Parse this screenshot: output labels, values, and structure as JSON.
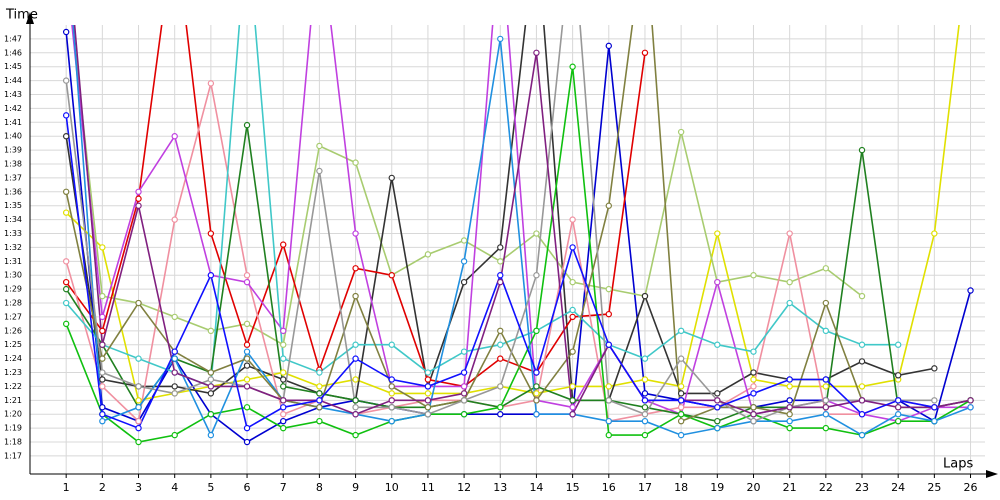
{
  "chart_data": {
    "type": "line",
    "y_label": "Time",
    "x_label": "Laps",
    "x": [
      1,
      2,
      3,
      4,
      5,
      6,
      7,
      8,
      9,
      10,
      11,
      12,
      13,
      14,
      15,
      16,
      17,
      18,
      19,
      20,
      21,
      22,
      23,
      24,
      25,
      26
    ],
    "xlim": [
      0,
      26.4
    ],
    "xticks": [
      1,
      2,
      3,
      4,
      5,
      6,
      7,
      8,
      9,
      10,
      11,
      12,
      13,
      14,
      15,
      16,
      17,
      18,
      19,
      20,
      21,
      22,
      23,
      24,
      25,
      26
    ],
    "ylim": [
      75.7,
      108
    ],
    "yticks": [
      {
        "value": 77,
        "label": "1:17"
      },
      {
        "value": 78,
        "label": "1:18"
      },
      {
        "value": 79,
        "label": "1:19"
      },
      {
        "value": 80,
        "label": "1:20"
      },
      {
        "value": 81,
        "label": "1:21"
      },
      {
        "value": 82,
        "label": "1:22"
      },
      {
        "value": 83,
        "label": "1:23"
      },
      {
        "value": 84,
        "label": "1:24"
      },
      {
        "value": 85,
        "label": "1:25"
      },
      {
        "value": 86,
        "label": "1:26"
      },
      {
        "value": 87,
        "label": "1:27"
      },
      {
        "value": 88,
        "label": "1:28"
      },
      {
        "value": 89,
        "label": "1:29"
      },
      {
        "value": 90,
        "label": "1:30"
      },
      {
        "value": 91,
        "label": "1:31"
      },
      {
        "value": 92,
        "label": "1:32"
      },
      {
        "value": 93,
        "label": "1:33"
      },
      {
        "value": 94,
        "label": "1:34"
      },
      {
        "value": 95,
        "label": "1:35"
      },
      {
        "value": 96,
        "label": "1:36"
      },
      {
        "value": 97,
        "label": "1:37"
      },
      {
        "value": 98,
        "label": "1:38"
      },
      {
        "value": 99,
        "label": "1:39"
      },
      {
        "value": 100,
        "label": "1:40"
      },
      {
        "value": 101,
        "label": "1:41"
      },
      {
        "value": 102,
        "label": "1:42"
      },
      {
        "value": 103,
        "label": "1:43"
      },
      {
        "value": 104,
        "label": "1:44"
      },
      {
        "value": 105,
        "label": "1:45"
      },
      {
        "value": 106,
        "label": "1:46"
      },
      {
        "value": 107,
        "label": "1:47"
      }
    ],
    "grid": true,
    "series": [
      {
        "color": "#0000d0",
        "values": [
          107.5,
          80.5,
          79.5,
          84,
          80,
          78,
          79.5,
          80.5,
          81,
          80.5,
          80,
          80,
          80,
          80,
          80,
          106.5,
          81.5,
          81,
          80.5,
          80.5,
          81,
          81,
          81,
          81,
          79.5,
          88.9
        ]
      },
      {
        "color": "#e0e000",
        "values": [
          94.5,
          92,
          81,
          81.5,
          82,
          82.5,
          83,
          82,
          82.5,
          81.5,
          81.5,
          81.5,
          82,
          81.5,
          82,
          82,
          82.5,
          82,
          93,
          82.5,
          82,
          82,
          82,
          82.5,
          93,
          115
        ]
      },
      {
        "color": "#a8cc70",
        "values": [
          112,
          88.5,
          88,
          87,
          86,
          86.5,
          85,
          99.3,
          98.1,
          90,
          91.5,
          92.5,
          91,
          93,
          89.5,
          89,
          88.5,
          100.3,
          89.5,
          90,
          89.5,
          90.5,
          88.5,
          null,
          null,
          null
        ]
      },
      {
        "color": "#333333",
        "values": [
          100,
          82.5,
          82,
          82,
          81.5,
          83.5,
          82.5,
          81.5,
          81,
          97,
          82,
          89.5,
          92,
          115,
          81,
          81,
          88.5,
          81.5,
          81.5,
          83,
          82.5,
          82.5,
          83.8,
          82.8,
          83.3,
          null
        ]
      },
      {
        "color": "#e00000",
        "values": [
          89.5,
          86,
          95.5,
          115,
          93,
          85,
          92.2,
          83.2,
          90.5,
          90,
          82.5,
          82,
          84,
          83,
          87,
          87.2,
          106,
          null,
          null,
          null,
          null,
          null,
          null,
          null,
          null,
          null
        ]
      },
      {
        "color": "#f090a0",
        "values": [
          91,
          82,
          79.5,
          94,
          103.8,
          90,
          80,
          81,
          80,
          80.5,
          81,
          81,
          80.5,
          81,
          94,
          79.5,
          80,
          80.5,
          80.5,
          82,
          93,
          80,
          80,
          81,
          80.5,
          81
        ]
      },
      {
        "color": "#c040e0",
        "values": [
          112,
          87,
          96,
          100,
          90,
          89.5,
          86,
          115,
          93,
          82,
          82,
          82,
          115,
          81,
          80.5,
          85,
          81,
          80,
          89.5,
          80,
          80.5,
          81,
          80,
          79.5,
          80.5,
          80.5
        ]
      },
      {
        "color": "#40c8c8",
        "values": [
          88,
          85,
          84,
          83,
          82,
          115,
          84,
          83,
          85,
          85,
          83,
          84.5,
          85,
          86,
          87.5,
          85,
          84,
          86,
          85,
          84.5,
          88,
          86,
          85,
          85,
          null,
          null
        ]
      },
      {
        "color": "#208020",
        "values": [
          89,
          85,
          80.5,
          84,
          83,
          100.8,
          82,
          81.5,
          81,
          80.5,
          80.5,
          81,
          80.5,
          82,
          81,
          81,
          80.5,
          80,
          79.5,
          80.5,
          80.5,
          80.5,
          99,
          80.5,
          80.5,
          81
        ]
      },
      {
        "color": "#10c010",
        "values": [
          86.5,
          80,
          78,
          78.5,
          80,
          80.5,
          79,
          79.5,
          78.5,
          79.5,
          80,
          80,
          80.5,
          86,
          105,
          78.5,
          78.5,
          80,
          79,
          80,
          79,
          79,
          78.5,
          79.5,
          79.5,
          81
        ]
      },
      {
        "color": "#2090e0",
        "values": [
          115,
          79.5,
          80.5,
          84,
          78.5,
          84.5,
          81,
          80.5,
          80,
          79.5,
          80,
          91,
          107,
          80,
          80,
          79.5,
          79.5,
          78.5,
          79,
          79.5,
          79.5,
          80,
          78.5,
          80,
          79.5,
          80.5
        ]
      },
      {
        "color": "#808040",
        "values": [
          96,
          84,
          88,
          84.5,
          83,
          84,
          81,
          80.5,
          88.5,
          82,
          80.5,
          81,
          86,
          81,
          84.5,
          95,
          115,
          79.5,
          80.5,
          80.5,
          80,
          88,
          81,
          null,
          null,
          null
        ]
      },
      {
        "color": "#989898",
        "values": [
          104,
          83,
          82,
          81.5,
          82.5,
          82,
          81,
          97.5,
          80.5,
          80.5,
          80,
          81,
          82,
          90,
          115,
          81,
          80,
          84,
          81,
          79.5,
          80.5,
          81,
          81,
          81,
          81,
          null
        ]
      },
      {
        "color": "#802080",
        "values": [
          115,
          85,
          95,
          83,
          82,
          82,
          81,
          81,
          80,
          81,
          81,
          81.5,
          89.5,
          106,
          80,
          85,
          81,
          81,
          81,
          80,
          80.5,
          80.5,
          81,
          80.5,
          80.5,
          81
        ]
      },
      {
        "color": "#1010ff",
        "values": [
          101.5,
          80,
          79,
          84.5,
          90,
          79,
          80.5,
          81,
          84,
          82.5,
          82,
          83,
          90,
          83,
          92,
          85,
          81,
          81,
          80.5,
          81.5,
          82.5,
          82.5,
          80,
          81,
          80.5,
          null
        ]
      }
    ]
  }
}
